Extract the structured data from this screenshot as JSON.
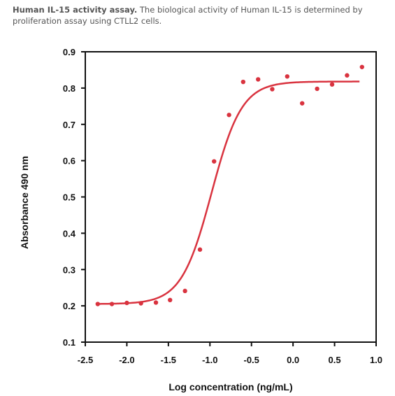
{
  "caption": {
    "lead": "Human IL-15 activity assay.",
    "body": " The biological activity of Human IL-15 is determined by proliferation assay using CTLL2 cells."
  },
  "chart_data": {
    "type": "scatter",
    "xlabel": "Log concentration (ng/mL)",
    "ylabel": "Absorbance 490 nm",
    "xlim": [
      -2.5,
      1.0
    ],
    "ylim": [
      0.1,
      0.9
    ],
    "x_ticks": [
      "-2.5",
      "-2.0",
      "-1.5",
      "-1.0",
      "-0.5",
      "0.0",
      "0.5",
      "1.0"
    ],
    "x_tick_values": [
      -2.5,
      -2.0,
      -1.5,
      -1.0,
      -0.5,
      0.0,
      0.5,
      1.0
    ],
    "y_ticks": [
      "0.1",
      "0.2",
      "0.3",
      "0.4",
      "0.5",
      "0.6",
      "0.7",
      "0.8",
      "0.9"
    ],
    "y_tick_values": [
      0.1,
      0.2,
      0.3,
      0.4,
      0.5,
      0.6,
      0.7,
      0.8,
      0.9
    ],
    "grid": false,
    "color": "#d9333f",
    "points": {
      "x": [
        -2.35,
        -2.18,
        -2.0,
        -1.83,
        -1.65,
        -1.48,
        -1.3,
        -1.12,
        -0.95,
        -0.77,
        -0.6,
        -0.42,
        -0.25,
        -0.07,
        0.11,
        0.29,
        0.47,
        0.65,
        0.83
      ],
      "y": [
        0.205,
        0.205,
        0.208,
        0.207,
        0.209,
        0.216,
        0.241,
        0.355,
        0.598,
        0.726,
        0.817,
        0.824,
        0.797,
        0.832,
        0.758,
        0.798,
        0.81,
        0.835,
        0.858
      ]
    },
    "fit": {
      "type": "4PL-logistic",
      "bottom": 0.205,
      "top": 0.818,
      "logEC50": -0.98,
      "slope": 5.5,
      "x_range": [
        -2.35,
        0.8
      ]
    }
  }
}
